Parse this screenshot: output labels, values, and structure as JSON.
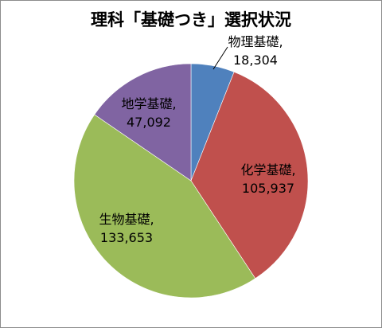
{
  "chart_data": {
    "type": "pie",
    "title": "理科「基礎つき」選択状況",
    "slices": [
      {
        "label": "物理基礎",
        "value": 18304,
        "value_text": "18,304",
        "color": "#4f81bd"
      },
      {
        "label": "化学基礎",
        "value": 105937,
        "value_text": "105,937",
        "color": "#c0504d"
      },
      {
        "label": "生物基礎",
        "value": 133653,
        "value_text": "133,653",
        "color": "#9bbb59"
      },
      {
        "label": "地学基礎",
        "value": 47092,
        "value_text": "47,092",
        "color": "#8064a2"
      }
    ],
    "start": "12 o'clock",
    "direction": "clockwise",
    "legend": "none"
  }
}
